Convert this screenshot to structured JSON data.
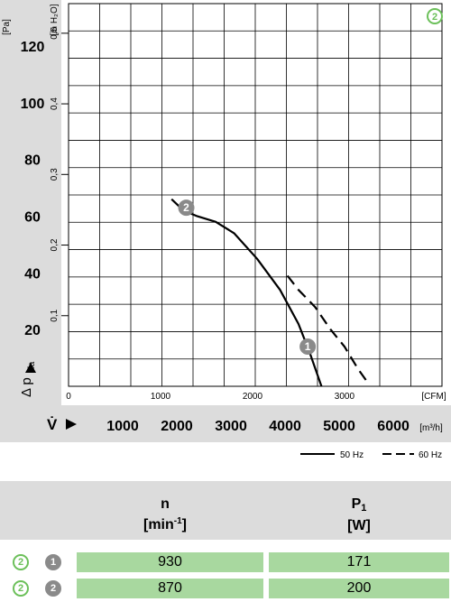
{
  "chart_data": {
    "type": "line",
    "badge": "2",
    "y_primary": {
      "unit": "[Pa]",
      "ticks": [
        20,
        40,
        60,
        80,
        100,
        120
      ],
      "range": [
        0,
        135
      ],
      "axis_label_main": "Δ p",
      "axis_label_sub": "fa"
    },
    "y_secondary": {
      "unit": "[in H₂O]",
      "ticks": [
        "0,1",
        "0,2",
        "0,3",
        "0,4",
        "0,5"
      ],
      "values": [
        0.1,
        0.2,
        0.3,
        0.4,
        0.5
      ]
    },
    "x_primary": {
      "unit": "[CFM]",
      "ticks": [
        "0",
        "1000",
        "2000",
        "3000"
      ],
      "values": [
        0,
        1000,
        2000,
        3000
      ],
      "range": [
        0,
        4060
      ]
    },
    "x_secondary": {
      "unit": "[m³/h]",
      "axis_label": "V̇",
      "ticks": [
        "1000",
        "2000",
        "3000",
        "4000",
        "5000",
        "6000"
      ],
      "values": [
        1000,
        2000,
        3000,
        4000,
        5000,
        6000
      ]
    },
    "grid": true,
    "series": [
      {
        "name": "50 Hz",
        "dash": "solid",
        "x": [
          1120,
          1250,
          1400,
          1600,
          1800,
          2050,
          2300,
          2500,
          2620,
          2750
        ],
        "y": [
          66,
          62,
          60,
          58,
          54,
          45,
          34,
          22,
          12,
          0
        ]
      },
      {
        "name": "60 Hz",
        "dash": "dashed",
        "x": [
          2380,
          2500,
          2680,
          2850,
          3000,
          3150,
          3260
        ],
        "y": [
          39,
          34,
          28,
          20,
          14,
          6,
          1
        ]
      }
    ],
    "markers": [
      {
        "label": "1",
        "x": 2600,
        "y": 14
      },
      {
        "label": "2",
        "x": 1280,
        "y": 63
      }
    ],
    "legend": {
      "position": "bottom-right",
      "items": [
        "50 Hz",
        "60 Hz"
      ]
    }
  },
  "table": {
    "headers": [
      {
        "main": "n",
        "unit": "[min",
        "unit_sup": "-1",
        "unit_end": "]"
      },
      {
        "main": "P",
        "main_sub": "1",
        "unit": "[W]"
      }
    ],
    "rows": [
      {
        "circle_green": "2",
        "circle_gray": "1",
        "values": [
          "930",
          "171"
        ]
      },
      {
        "circle_green": "2",
        "circle_gray": "2",
        "values": [
          "870",
          "200"
        ]
      }
    ]
  }
}
